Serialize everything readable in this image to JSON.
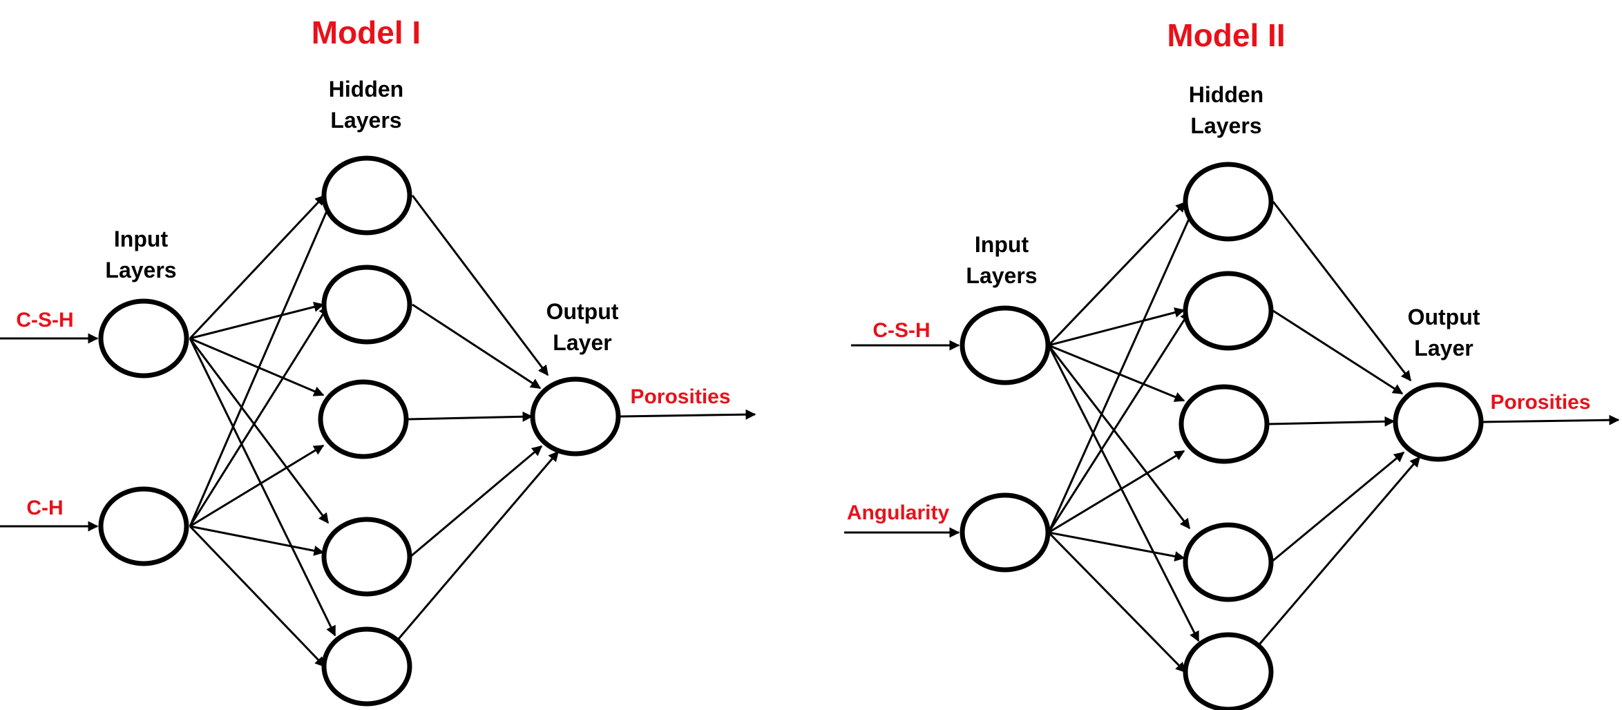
{
  "colors": {
    "accent": "#e8111a",
    "ink": "#000000"
  },
  "models": [
    {
      "title": "Model I",
      "hidden_label": [
        "Hidden",
        "Layers"
      ],
      "input_label": [
        "Input",
        "Layers"
      ],
      "output_label": [
        "Output",
        "Layer"
      ],
      "inputs": [
        "C-S-H",
        "C-H"
      ],
      "output": "Porosities",
      "hidden_count": 5
    },
    {
      "title": "Model II",
      "hidden_label": [
        "Hidden",
        "Layers"
      ],
      "input_label": [
        "Input",
        "Layers"
      ],
      "output_label": [
        "Output",
        "Layer"
      ],
      "inputs": [
        "C-S-H",
        "Angularity"
      ],
      "output": "Porosities",
      "hidden_count": 5
    }
  ]
}
